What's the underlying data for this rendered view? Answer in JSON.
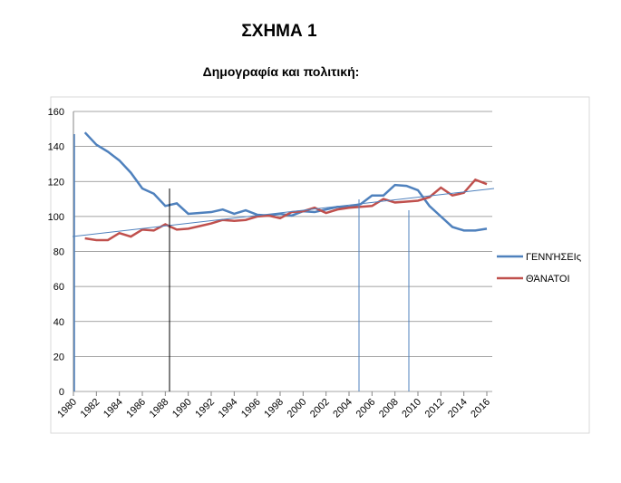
{
  "chart_data": {
    "type": "line",
    "title": "ΣΧΗΜΑ 1",
    "subtitle": "Δημογραφία και πολιτική:",
    "x": [
      1981,
      1982,
      1983,
      1984,
      1985,
      1986,
      1987,
      1988,
      1989,
      1990,
      1991,
      1992,
      1993,
      1994,
      1995,
      1996,
      1997,
      1998,
      1999,
      2000,
      2001,
      2002,
      2003,
      2004,
      2005,
      2006,
      2007,
      2008,
      2009,
      2010,
      2011,
      2012,
      2013,
      2014,
      2015,
      2016
    ],
    "series": [
      {
        "name": "ΓΕΝΝΉΣΕΙς",
        "color": "#4f81bd",
        "values": [
          148,
          141,
          137,
          132,
          125,
          116,
          113,
          106,
          107.5,
          101.5,
          102,
          102.5,
          104,
          101.5,
          103.5,
          101,
          100.5,
          101.5,
          100.5,
          103,
          102.5,
          104,
          105.5,
          105.5,
          107,
          112,
          112,
          118,
          117.5,
          115,
          106,
          100,
          94,
          92,
          92,
          93
        ]
      },
      {
        "name": "ΘΆΝΑΤΟΙ",
        "color": "#c0504d",
        "values": [
          87.5,
          86.5,
          86.5,
          90.5,
          88.5,
          92.5,
          92,
          95.5,
          92.5,
          93,
          94.5,
          96,
          98,
          97.5,
          98,
          100,
          100.5,
          99,
          102.5,
          103,
          105,
          102,
          104,
          105,
          105.5,
          106,
          110,
          108,
          108.5,
          109,
          111,
          116.5,
          112,
          113.5,
          121,
          118.5
        ]
      }
    ],
    "xlim": [
      1980,
      2016
    ],
    "xticks": [
      1980,
      1982,
      1984,
      1986,
      1988,
      1990,
      1992,
      1994,
      1996,
      1998,
      2000,
      2002,
      2004,
      2006,
      2008,
      2010,
      2012,
      2014,
      2016
    ],
    "ylim": [
      0,
      160
    ],
    "yticks": [
      0,
      20,
      40,
      60,
      80,
      100,
      120,
      140,
      160
    ],
    "grid": true,
    "legend": "right"
  }
}
